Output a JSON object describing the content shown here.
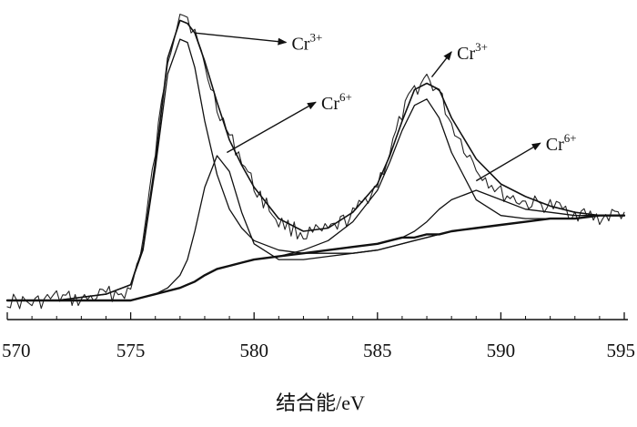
{
  "chart_data": {
    "type": "line",
    "title": "",
    "xlabel": "结合能/eV",
    "ylabel": "",
    "xlim": [
      570,
      595
    ],
    "ylim": [
      0,
      1.05
    ],
    "x_ticks": [
      "570",
      "575",
      "580",
      "585",
      "590",
      "595"
    ],
    "y_ticks": [],
    "grid": false,
    "legend": "none",
    "x": [
      570,
      571,
      572,
      573,
      574,
      575,
      575.5,
      576,
      576.5,
      577,
      577.3,
      577.6,
      578,
      578.5,
      579,
      579.5,
      580,
      581,
      582,
      583,
      584,
      585,
      585.5,
      586,
      586.5,
      587,
      587.5,
      588,
      589,
      590,
      591,
      592,
      593,
      594,
      595
    ],
    "series": [
      {
        "name": "",
        "role": "raw",
        "color": "#222222",
        "values": [
          0.08,
          0.07,
          0.09,
          0.08,
          0.1,
          0.11,
          0.27,
          0.55,
          0.85,
          1.0,
          0.98,
          0.93,
          0.82,
          0.7,
          0.6,
          0.53,
          0.44,
          0.33,
          0.29,
          0.3,
          0.35,
          0.45,
          0.55,
          0.67,
          0.75,
          0.79,
          0.74,
          0.64,
          0.5,
          0.42,
          0.39,
          0.38,
          0.36,
          0.34,
          0.36
        ]
      },
      {
        "name": "",
        "role": "envelope",
        "color": "#111111",
        "values": [
          0.08,
          0.08,
          0.08,
          0.09,
          0.1,
          0.13,
          0.25,
          0.52,
          0.85,
          0.97,
          0.96,
          0.93,
          0.84,
          0.71,
          0.59,
          0.51,
          0.44,
          0.34,
          0.3,
          0.31,
          0.36,
          0.45,
          0.54,
          0.65,
          0.75,
          0.77,
          0.75,
          0.66,
          0.53,
          0.45,
          0.41,
          0.38,
          0.36,
          0.35,
          0.35
        ]
      },
      {
        "name": "Cr3+",
        "role": "component",
        "color": "#111111",
        "values": [
          0.08,
          0.08,
          0.08,
          0.09,
          0.1,
          0.13,
          0.24,
          0.5,
          0.8,
          0.91,
          0.9,
          0.82,
          0.65,
          0.48,
          0.37,
          0.31,
          0.27,
          0.24,
          0.23,
          0.23,
          0.23,
          0.24,
          0.25,
          0.26,
          0.27,
          0.28,
          0.29,
          0.3,
          0.31,
          0.32,
          0.33,
          0.34,
          0.34,
          0.35,
          0.35
        ]
      },
      {
        "name": "Cr6+",
        "role": "component",
        "color": "#111111",
        "values": [
          0.08,
          0.08,
          0.08,
          0.08,
          0.08,
          0.08,
          0.09,
          0.1,
          0.12,
          0.16,
          0.21,
          0.3,
          0.44,
          0.54,
          0.49,
          0.36,
          0.26,
          0.21,
          0.21,
          0.22,
          0.23,
          0.24,
          0.25,
          0.26,
          0.27,
          0.28,
          0.29,
          0.3,
          0.31,
          0.32,
          0.33,
          0.34,
          0.34,
          0.35,
          0.35
        ]
      },
      {
        "name": "Cr3+",
        "role": "component",
        "color": "#111111",
        "values": [
          0.08,
          0.08,
          0.08,
          0.08,
          0.08,
          0.08,
          0.09,
          0.1,
          0.11,
          0.12,
          0.13,
          0.14,
          0.16,
          0.18,
          0.19,
          0.2,
          0.21,
          0.22,
          0.24,
          0.27,
          0.33,
          0.43,
          0.52,
          0.62,
          0.7,
          0.72,
          0.66,
          0.55,
          0.4,
          0.35,
          0.34,
          0.34,
          0.34,
          0.35,
          0.35
        ]
      },
      {
        "name": "Cr6+",
        "role": "component",
        "color": "#111111",
        "values": [
          0.08,
          0.08,
          0.08,
          0.08,
          0.08,
          0.08,
          0.09,
          0.1,
          0.11,
          0.12,
          0.13,
          0.14,
          0.16,
          0.18,
          0.19,
          0.2,
          0.21,
          0.22,
          0.23,
          0.24,
          0.25,
          0.26,
          0.27,
          0.28,
          0.3,
          0.33,
          0.37,
          0.4,
          0.43,
          0.4,
          0.37,
          0.36,
          0.35,
          0.35,
          0.35
        ]
      },
      {
        "name": "",
        "role": "background",
        "color": "#111111",
        "values": [
          0.08,
          0.08,
          0.08,
          0.08,
          0.08,
          0.08,
          0.09,
          0.1,
          0.11,
          0.12,
          0.13,
          0.14,
          0.16,
          0.18,
          0.19,
          0.2,
          0.21,
          0.22,
          0.23,
          0.24,
          0.25,
          0.26,
          0.27,
          0.28,
          0.28,
          0.29,
          0.29,
          0.3,
          0.31,
          0.32,
          0.33,
          0.34,
          0.34,
          0.35,
          0.35
        ]
      }
    ],
    "annotations": [
      {
        "base": "Cr",
        "sup": "3+",
        "from_x": 577.6,
        "from_y": 0.93,
        "to_x": 581.3,
        "to_y": 0.9
      },
      {
        "base": "Cr",
        "sup": "6+",
        "from_x": 578.9,
        "from_y": 0.55,
        "to_x": 582.5,
        "to_y": 0.71
      },
      {
        "base": "Cr",
        "sup": "3+",
        "from_x": 587.2,
        "from_y": 0.79,
        "to_x": 588.0,
        "to_y": 0.87
      },
      {
        "base": "Cr",
        "sup": "6+",
        "from_x": 589.0,
        "from_y": 0.46,
        "to_x": 591.6,
        "to_y": 0.58
      }
    ]
  }
}
